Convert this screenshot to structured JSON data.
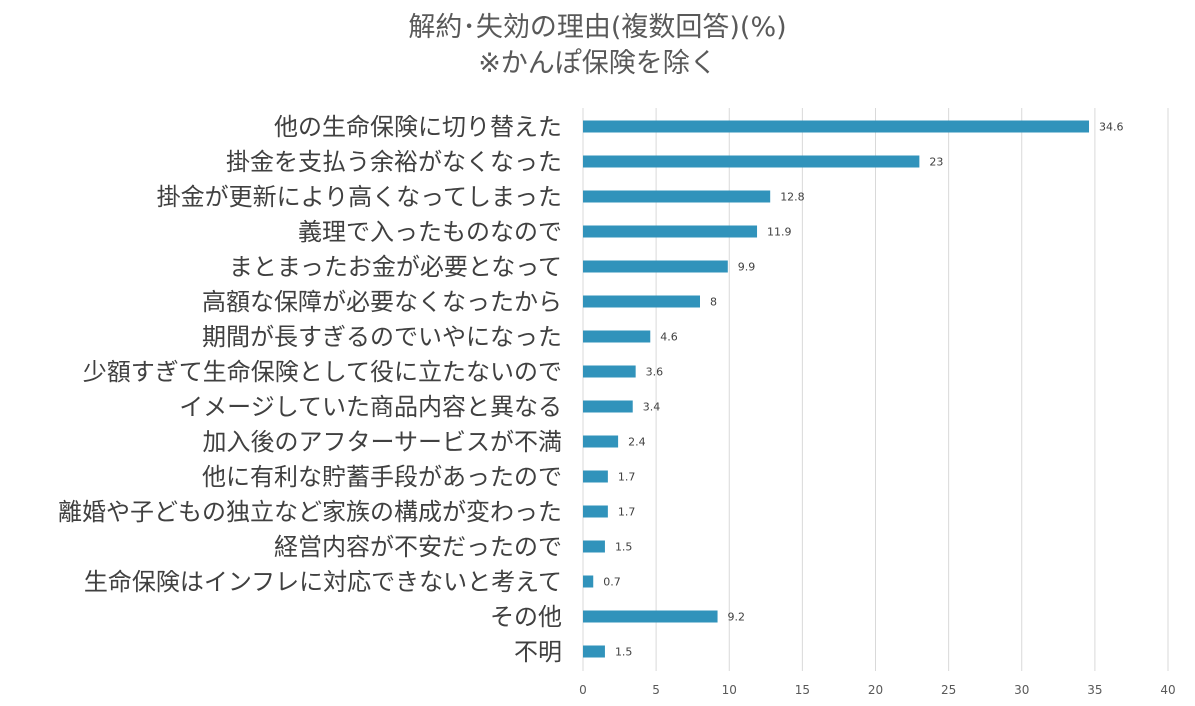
{
  "chart_data": {
    "type": "bar",
    "orientation": "horizontal",
    "title": "解約･失効の理由(複数回答)(%)",
    "subtitle": "※かんぽ保険を除く",
    "categories": [
      "他の生命保険に切り替えた",
      "掛金を支払う余裕がなくなった",
      "掛金が更新により高くなってしまった",
      "義理で入ったものなので",
      "まとまったお金が必要となって",
      "高額な保障が必要なくなったから",
      "期間が長すぎるのでいやになった",
      "少額すぎて生命保険として役に立たないので",
      "イメージしていた商品内容と異なる",
      "加入後のアフターサービスが不満",
      "他に有利な貯蓄手段があったので",
      "離婚や子どもの独立など家族の構成が変わった",
      "経営内容が不安だったので",
      "生命保険はインフレに対応できないと考えて",
      "その他",
      "不明"
    ],
    "values": [
      34.6,
      23,
      12.8,
      11.9,
      9.9,
      8,
      4.6,
      3.6,
      3.4,
      2.4,
      1.7,
      1.7,
      1.5,
      0.7,
      9.2,
      1.5
    ],
    "value_labels": [
      "34.6",
      "23",
      "12.8",
      "11.9",
      "9.9",
      "8",
      "4.6",
      "3.6",
      "3.4",
      "2.4",
      "1.7",
      "1.7",
      "1.5",
      "0.7",
      "9.2",
      "1.5"
    ],
    "xlim": [
      0,
      40
    ],
    "xticks": [
      "0",
      "5",
      "10",
      "15",
      "20",
      "25",
      "30",
      "35",
      "40"
    ],
    "xlabel": "",
    "ylabel": "",
    "grid": true,
    "legend": "none",
    "bar_color": "#3193bb"
  }
}
